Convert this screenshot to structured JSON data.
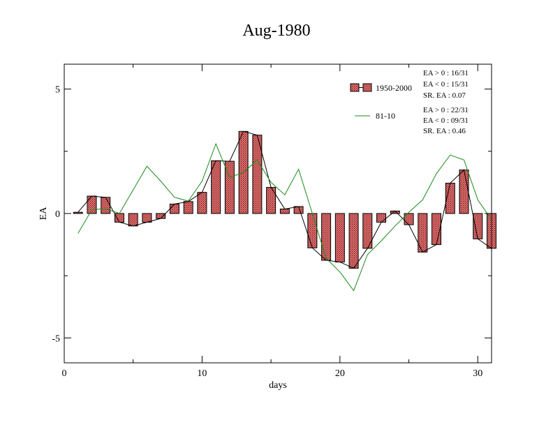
{
  "chart_data": {
    "type": "bar",
    "title": "Aug-1980",
    "xlabel": "days",
    "ylabel": "EA",
    "xlim": [
      0,
      31
    ],
    "ylim": [
      -6,
      6
    ],
    "x_ticks": [
      0,
      10,
      20,
      30
    ],
    "y_ticks": [
      -5,
      0,
      5
    ],
    "x_tick_labels": [
      "0",
      "10",
      "20",
      "30"
    ],
    "y_tick_labels": [
      "-5",
      "0",
      "5"
    ],
    "grid": false,
    "legend_position": "top-right",
    "x": [
      1,
      2,
      3,
      4,
      5,
      6,
      7,
      8,
      9,
      10,
      11,
      12,
      13,
      14,
      15,
      16,
      17,
      18,
      19,
      20,
      21,
      22,
      23,
      24,
      25,
      26,
      27,
      28,
      29,
      30,
      31
    ],
    "series": [
      {
        "name": "1950-2000",
        "kind": "bar",
        "values": [
          0.05,
          0.7,
          0.65,
          -0.35,
          -0.5,
          -0.35,
          -0.2,
          0.38,
          0.48,
          0.85,
          2.12,
          2.1,
          3.3,
          3.15,
          1.05,
          0.18,
          0.28,
          -1.38,
          -1.88,
          -1.95,
          -2.2,
          -1.4,
          -0.35,
          0.1,
          -0.45,
          -1.55,
          -1.25,
          1.22,
          1.75,
          -1.02,
          -1.4
        ],
        "stats": [
          "EA > 0 : 16/31",
          "EA < 0 : 15/31",
          "SR. EA :  0.07"
        ]
      },
      {
        "name": "81-10",
        "kind": "line",
        "values": [
          -0.8,
          0.15,
          0.2,
          0.0,
          0.95,
          1.9,
          1.3,
          0.65,
          0.5,
          1.3,
          2.8,
          1.45,
          1.65,
          2.15,
          1.25,
          0.75,
          1.78,
          0.0,
          -1.8,
          -2.35,
          -3.1,
          -1.65,
          -1.1,
          -0.5,
          0.05,
          0.55,
          1.6,
          2.35,
          2.15,
          0.55,
          -0.25
        ],
        "stats": [
          "EA > 0 : 22/31",
          "EA < 0 : 09/31",
          "SR. EA :  0.46"
        ]
      }
    ],
    "colors": {
      "bar_fill": "#e06a6a",
      "bar_stroke": "#000000",
      "connector": "#000000",
      "line": "#1a8a1a"
    }
  }
}
